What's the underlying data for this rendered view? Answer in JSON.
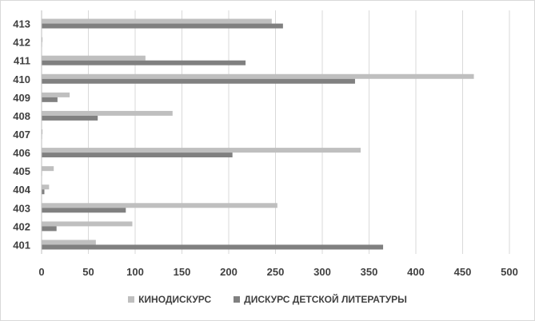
{
  "chart_data": {
    "type": "bar",
    "orientation": "horizontal",
    "categories": [
      "401",
      "402",
      "403",
      "404",
      "405",
      "406",
      "407",
      "408",
      "409",
      "410",
      "411",
      "412",
      "413"
    ],
    "series": [
      {
        "name": "КИНОДИСКУРС",
        "color": "#bfbfbf",
        "values": [
          58,
          97,
          252,
          8,
          13,
          341,
          1,
          140,
          30,
          462,
          111,
          1,
          246
        ]
      },
      {
        "name": "ДИСКУРС ДЕТСКОЙ ЛИТЕРАТУРЫ",
        "color": "#808080",
        "values": [
          365,
          16,
          90,
          3,
          0,
          204,
          0,
          60,
          17,
          335,
          218,
          0,
          258
        ]
      }
    ],
    "xticks": [
      "0",
      "50",
      "100",
      "150",
      "200",
      "250",
      "300",
      "350",
      "400",
      "450",
      "500"
    ],
    "xlim": [
      0,
      500
    ],
    "grid": true,
    "legend_position": "bottom"
  }
}
